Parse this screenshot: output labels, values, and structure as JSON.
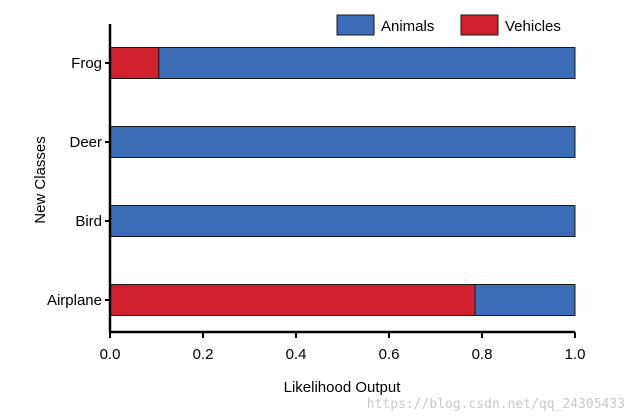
{
  "chart_data": {
    "type": "bar",
    "orientation": "horizontal",
    "stacked": true,
    "categories": [
      "Frog",
      "Deer",
      "Bird",
      "Airplane"
    ],
    "series": [
      {
        "name": "Vehicles",
        "color": "#d0202e",
        "values": [
          0.105,
          0.0,
          0.0,
          0.785
        ]
      },
      {
        "name": "Animals",
        "color": "#3a6cb8",
        "values": [
          0.895,
          1.0,
          1.0,
          0.215
        ]
      }
    ],
    "xlabel": "Likelihood Output",
    "ylabel": "New Classes",
    "xlim": [
      0.0,
      1.0
    ],
    "xticks": [
      "0.0",
      "0.2",
      "0.4",
      "0.6",
      "0.8",
      "1.0"
    ],
    "legend": {
      "placement": "top-right",
      "entries": [
        "Animals",
        "Vehicles"
      ]
    },
    "grid": false
  },
  "watermark": "https://blog.csdn.net/qq_24305433"
}
